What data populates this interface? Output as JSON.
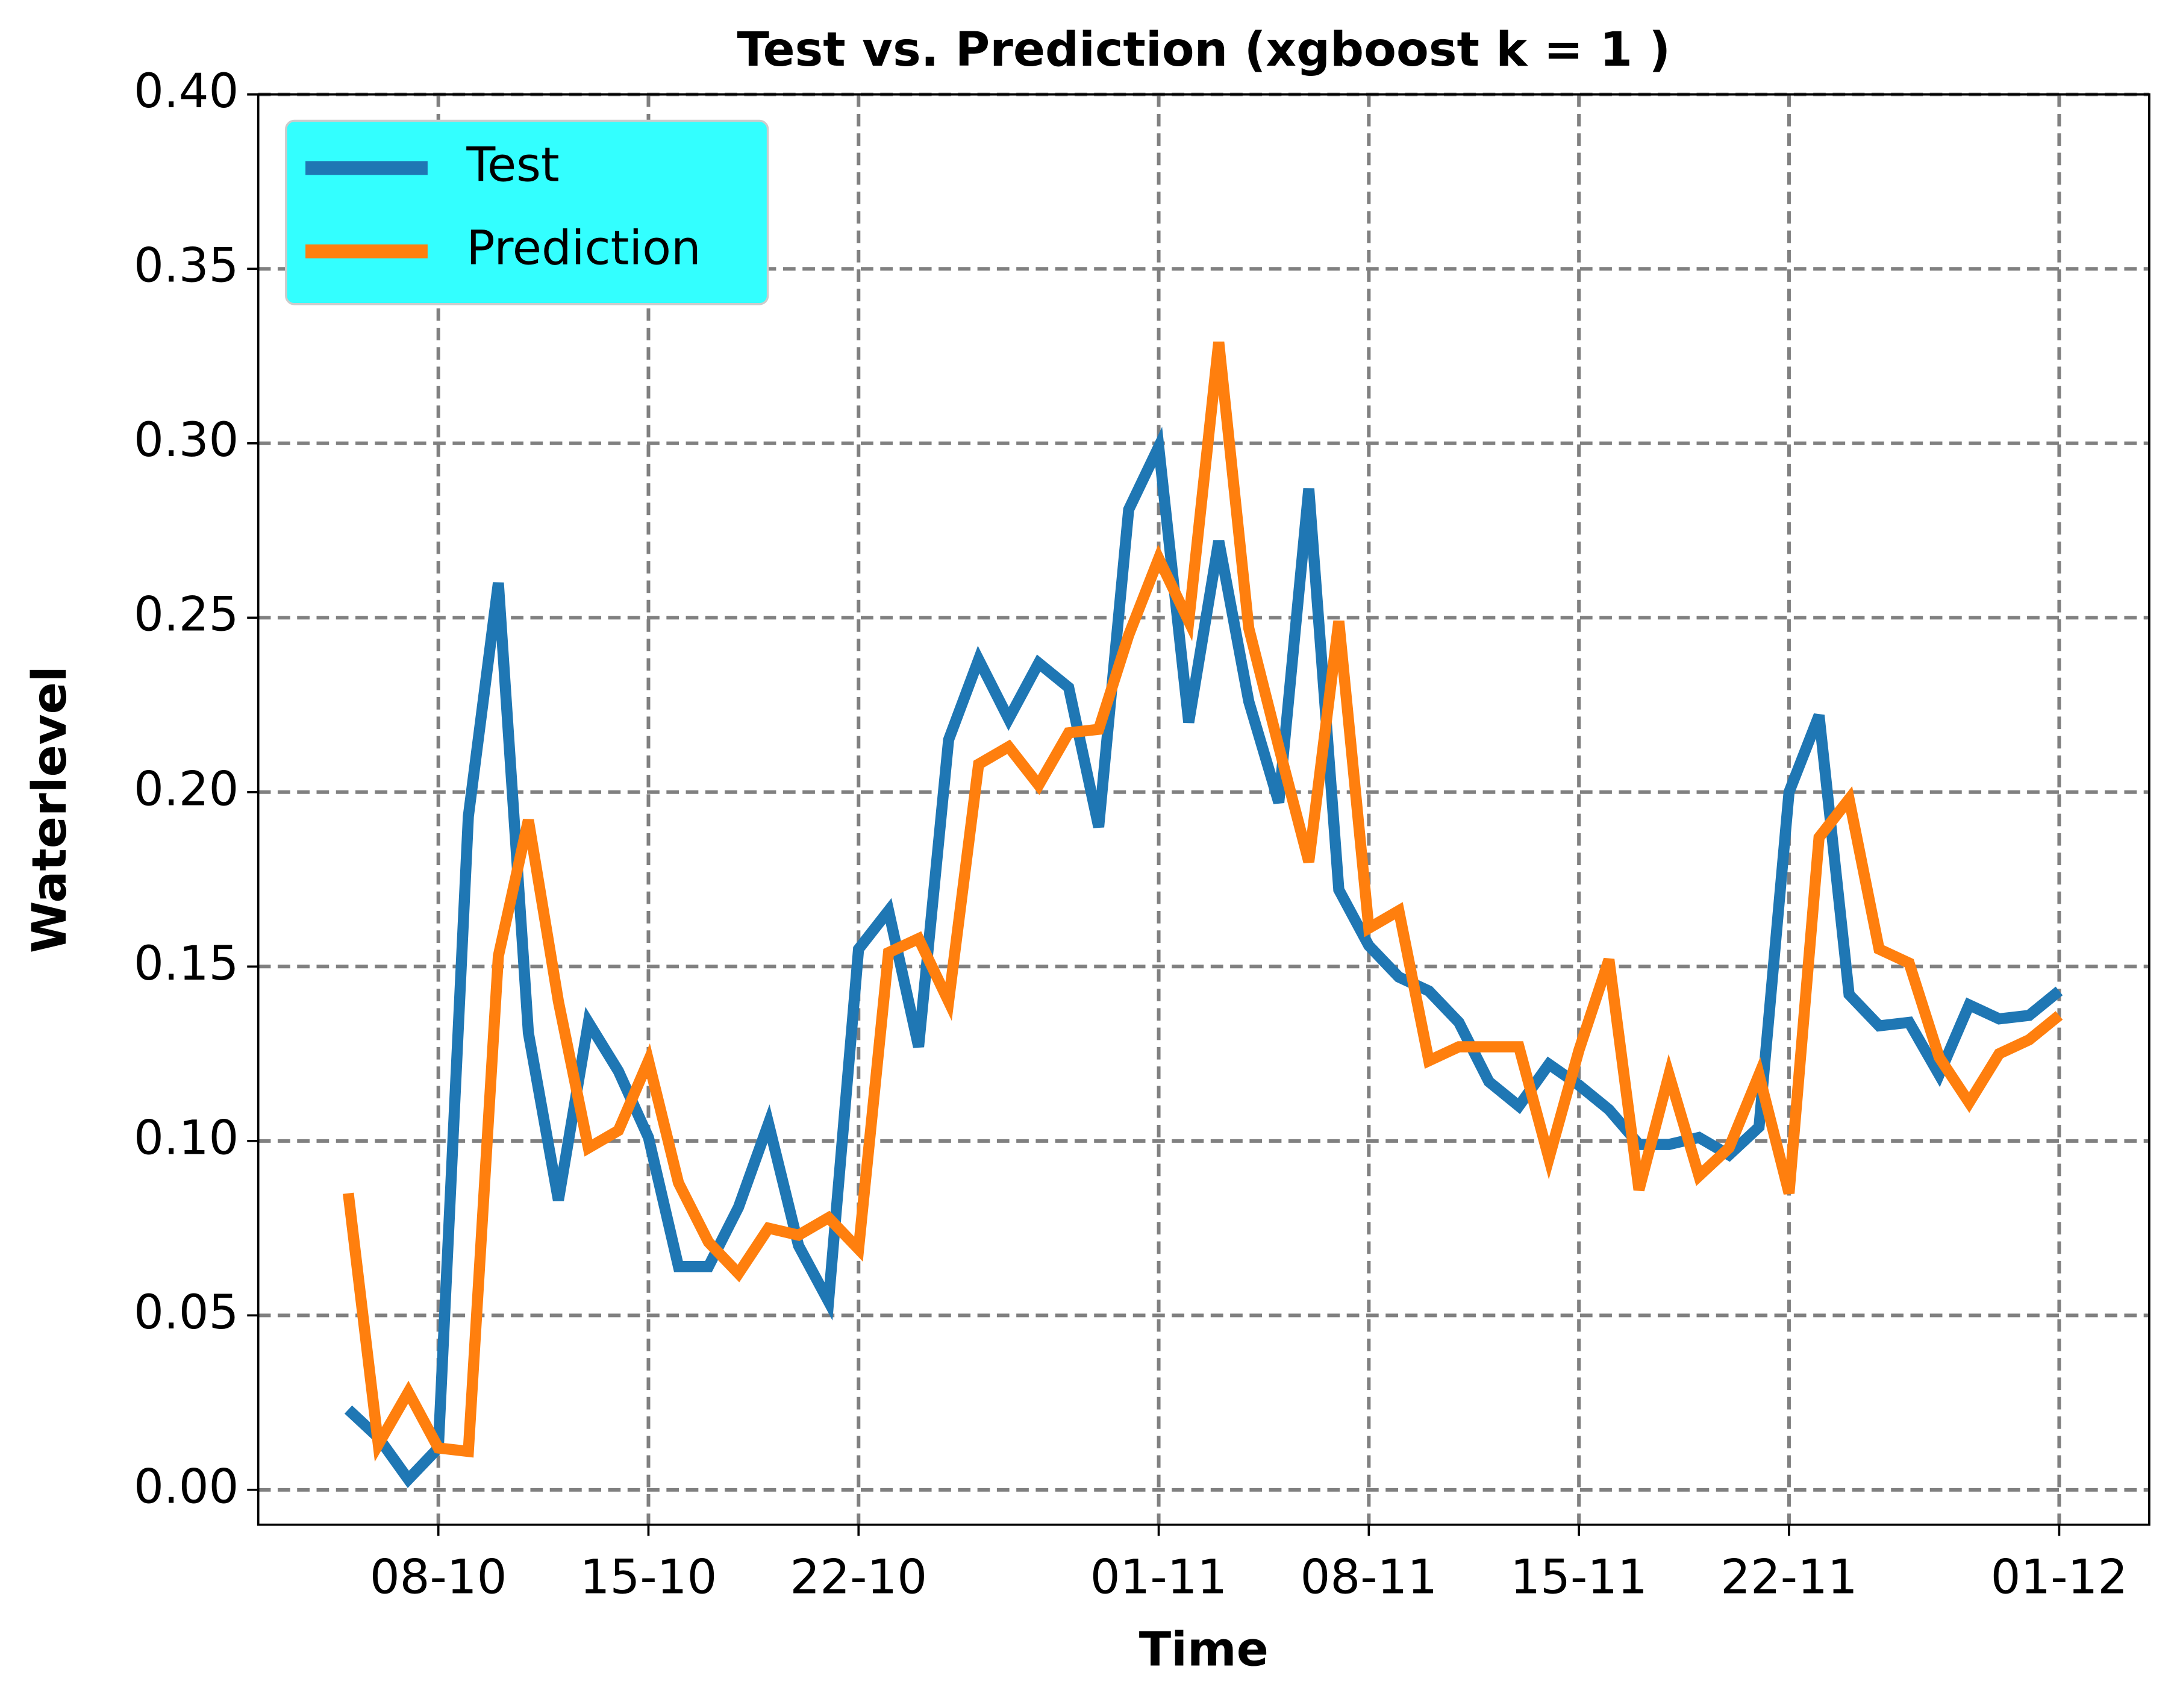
{
  "chart_data": {
    "type": "line",
    "title": "Test vs. Prediction (xgboost k = 1 )",
    "x_label": "Time",
    "y_label": "Waterlevel",
    "x": [
      "05-10",
      "06-10",
      "07-10",
      "08-10",
      "09-10",
      "10-10",
      "11-10",
      "12-10",
      "13-10",
      "14-10",
      "15-10",
      "16-10",
      "17-10",
      "18-10",
      "19-10",
      "20-10",
      "21-10",
      "22-10",
      "23-10",
      "24-10",
      "25-10",
      "26-10",
      "27-10",
      "28-10",
      "29-10",
      "30-10",
      "31-10",
      "01-11",
      "02-11",
      "03-11",
      "04-11",
      "05-11",
      "06-11",
      "07-11",
      "08-11",
      "09-11",
      "10-11",
      "11-11",
      "12-11",
      "13-11",
      "14-11",
      "15-11",
      "16-11",
      "17-11",
      "18-11",
      "19-11",
      "20-11",
      "21-11",
      "22-11",
      "23-11",
      "24-11",
      "25-11",
      "26-11",
      "27-11",
      "28-11",
      "29-11",
      "30-11",
      "01-12"
    ],
    "series": [
      {
        "name": "Test",
        "color": "#1f77b4",
        "values": [
          0.023,
          0.015,
          0.003,
          0.012,
          0.193,
          0.26,
          0.131,
          0.083,
          0.134,
          0.12,
          0.101,
          0.064,
          0.064,
          0.081,
          0.105,
          0.07,
          0.054,
          0.155,
          0.166,
          0.127,
          0.215,
          0.238,
          0.221,
          0.237,
          0.23,
          0.19,
          0.281,
          0.299,
          0.22,
          0.272,
          0.226,
          0.197,
          0.287,
          0.172,
          0.156,
          0.147,
          0.143,
          0.134,
          0.117,
          0.11,
          0.122,
          0.116,
          0.109,
          0.099,
          0.099,
          0.101,
          0.096,
          0.104,
          0.2,
          0.222,
          0.142,
          0.133,
          0.134,
          0.119,
          0.139,
          0.135,
          0.136,
          0.143
        ]
      },
      {
        "name": "Prediction",
        "color": "#ff7f0e",
        "values": [
          0.085,
          0.013,
          0.028,
          0.012,
          0.011,
          0.153,
          0.192,
          0.14,
          0.098,
          0.103,
          0.123,
          0.088,
          0.071,
          0.062,
          0.075,
          0.073,
          0.078,
          0.069,
          0.154,
          0.158,
          0.14,
          0.208,
          0.213,
          0.202,
          0.217,
          0.218,
          0.245,
          0.267,
          0.249,
          0.329,
          0.247,
          0.213,
          0.18,
          0.249,
          0.161,
          0.166,
          0.123,
          0.127,
          0.127,
          0.127,
          0.095,
          0.126,
          0.152,
          0.086,
          0.119,
          0.09,
          0.098,
          0.119,
          0.085,
          0.187,
          0.198,
          0.155,
          0.151,
          0.124,
          0.111,
          0.125,
          0.129,
          0.136
        ]
      }
    ],
    "xlim": [
      "02-10",
      "04-12"
    ],
    "xticks": [
      "08-10",
      "15-10",
      "22-10",
      "01-11",
      "08-11",
      "15-11",
      "22-11",
      "01-12"
    ],
    "ylim": [
      -0.01,
      0.4
    ],
    "yticks": [
      {
        "value": 0,
        "label": "0.00"
      },
      0.05,
      {
        "value": 0.1,
        "label": "0.10"
      },
      0.15,
      {
        "value": 0.2,
        "label": "0.20"
      },
      0.25,
      {
        "value": 0.3,
        "label": "0.30"
      },
      0.35,
      {
        "value": 0.4,
        "label": "0.40"
      }
    ],
    "grid": true,
    "legend": "upper-left",
    "legend_color": "#33ffff"
  }
}
